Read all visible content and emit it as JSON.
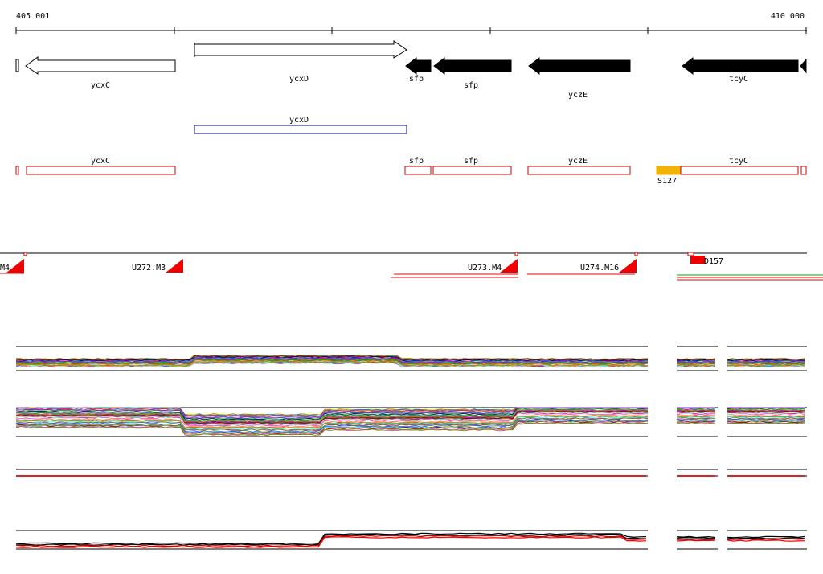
{
  "ruler": {
    "start_label": "405 001",
    "end_label": "410 000"
  },
  "genes": {
    "ycxC": "ycxC",
    "ycxD": "ycxD",
    "sfp_a": "sfp",
    "sfp_b": "sfp",
    "yczE": "yczE",
    "tcyC": "tcyC"
  },
  "transcript": {
    "ycxD": "ycxD"
  },
  "cds": {
    "ycxC": "ycxC",
    "sfp_a": "sfp",
    "sfp_b": "sfp",
    "yczE": "yczE",
    "tcyC": "tcyC",
    "marker": "S127"
  },
  "segments": {
    "left_cut": "M4",
    "u272": "U272.M3",
    "u273": "U273.M4",
    "u274": "U274.M16",
    "d157": "D157"
  },
  "colors": {
    "cds_outline": "#cc0000",
    "transcript_outline": "#0000aa",
    "marker_fill": "#f0b400",
    "segment_flag": "#ee0000"
  },
  "tracks": {
    "track_palette": [
      "#e6194b",
      "#3cb44b",
      "#4363d8",
      "#f58231",
      "#911eb4",
      "#46f0f0",
      "#f032e6",
      "#bcf60c",
      "#fabebe",
      "#008080",
      "#9a6324",
      "#800000",
      "#aaffc3",
      "#808000",
      "#000075",
      "#ff6600",
      "#00aa00",
      "#0066ff",
      "#cc00cc",
      "#999900"
    ],
    "summary_colors": [
      "#000000",
      "#000000",
      "#cc0000",
      "#ee0000"
    ]
  }
}
